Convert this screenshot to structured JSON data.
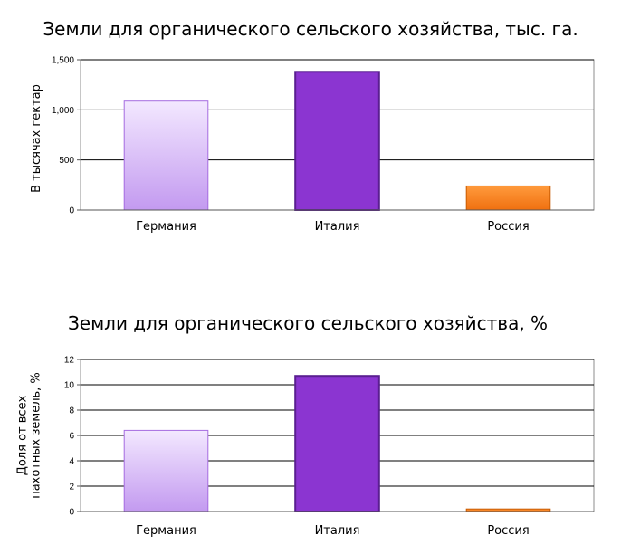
{
  "chart_data": [
    {
      "type": "bar",
      "title": "Земли для органического сельского хозяйства, тыс. га.",
      "ylabel": [
        "В тысячах гектар"
      ],
      "categories": [
        "Германия",
        "Италия",
        "Россия"
      ],
      "values": [
        1087,
        1380,
        240
      ],
      "ylim": [
        0,
        1500
      ],
      "yticks": [
        "0",
        "500",
        "1,000",
        "1,500"
      ],
      "ytick_values": [
        0,
        500,
        1000,
        1500
      ],
      "grid": true,
      "bar_styles": [
        "light-purple-gradient",
        "dark-purple",
        "orange-gradient"
      ]
    },
    {
      "type": "bar",
      "title": "Земли для органического сельского хозяйства, %",
      "ylabel": [
        "Доля от всех",
        "пахотных земель, %"
      ],
      "categories": [
        "Германия",
        "Италия",
        "Россия"
      ],
      "values": [
        6.4,
        10.7,
        0.2
      ],
      "ylim": [
        0,
        12
      ],
      "yticks": [
        "0",
        "2",
        "4",
        "6",
        "8",
        "10",
        "12"
      ],
      "ytick_values": [
        0,
        2,
        4,
        6,
        8,
        10,
        12
      ],
      "grid": true,
      "bar_styles": [
        "light-purple-gradient",
        "dark-purple",
        "orange-gradient"
      ]
    }
  ],
  "colors": {
    "light_purple_top": "#f3e8ff",
    "light_purple_bottom": "#c39af0",
    "light_purple_border": "#a56be0",
    "dark_purple": "#8b35d1",
    "dark_purple_border": "#5a1f91",
    "orange_top": "#ff9a3c",
    "orange_bottom": "#f07010",
    "orange_border": "#c85a00"
  }
}
